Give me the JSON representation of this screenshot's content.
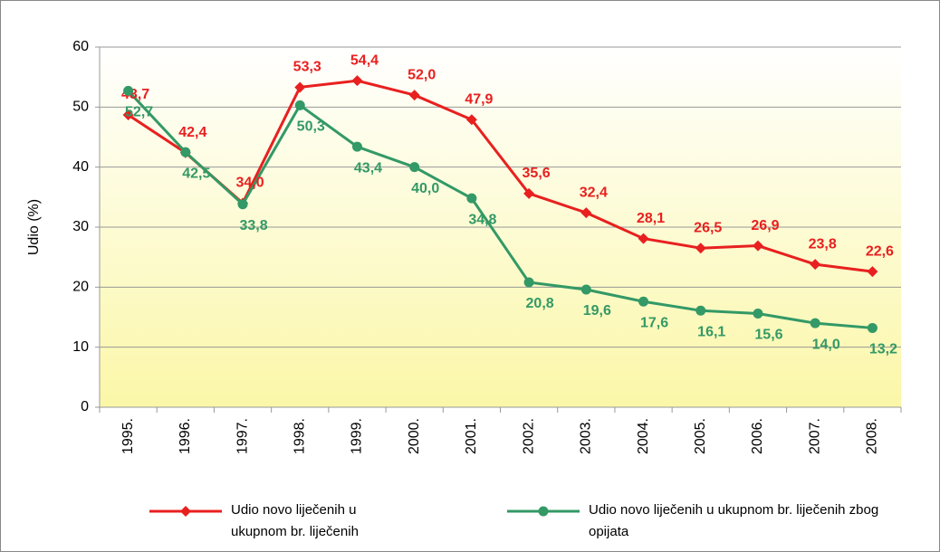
{
  "chart_data": {
    "type": "line",
    "y_label": "Udio (%)",
    "categories": [
      "1995.",
      "1996.",
      "1997.",
      "1998.",
      "1999.",
      "2000.",
      "2001.",
      "2002.",
      "2003.",
      "2004.",
      "2005.",
      "2006.",
      "2007.",
      "2008."
    ],
    "ylim": [
      0,
      60
    ],
    "yticks": [
      0,
      10,
      20,
      30,
      40,
      50,
      60
    ],
    "grid": true,
    "series": [
      {
        "name": "Udio novo liječenih u ukupnom br. liječenih",
        "color": "#e8201f",
        "marker": "diamond",
        "values": [
          48.7,
          42.4,
          34.0,
          53.3,
          54.4,
          52.0,
          47.9,
          35.6,
          32.4,
          28.1,
          26.5,
          26.9,
          23.8,
          22.6
        ],
        "value_labels": [
          "48,7",
          "42,4",
          "34,0",
          "53,3",
          "54,4",
          "52,0",
          "47,9",
          "35,6",
          "32,4",
          "28,1",
          "26,5",
          "26,9",
          "23,8",
          "22,6"
        ]
      },
      {
        "name": "Udio novo liječenih u ukupnom br. liječenih zbog opijata",
        "color": "#339966",
        "marker": "circle",
        "values": [
          52.7,
          42.5,
          33.8,
          50.3,
          43.4,
          40.0,
          34.8,
          20.8,
          19.6,
          17.6,
          16.1,
          15.6,
          14.0,
          13.2
        ],
        "value_labels": [
          "52,7",
          "42,5",
          "33,8",
          "50,3",
          "43,4",
          "40,0",
          "34,8",
          "20,8",
          "19,6",
          "17,6",
          "16,1",
          "15,6",
          "14,0",
          "13,2"
        ]
      }
    ]
  }
}
